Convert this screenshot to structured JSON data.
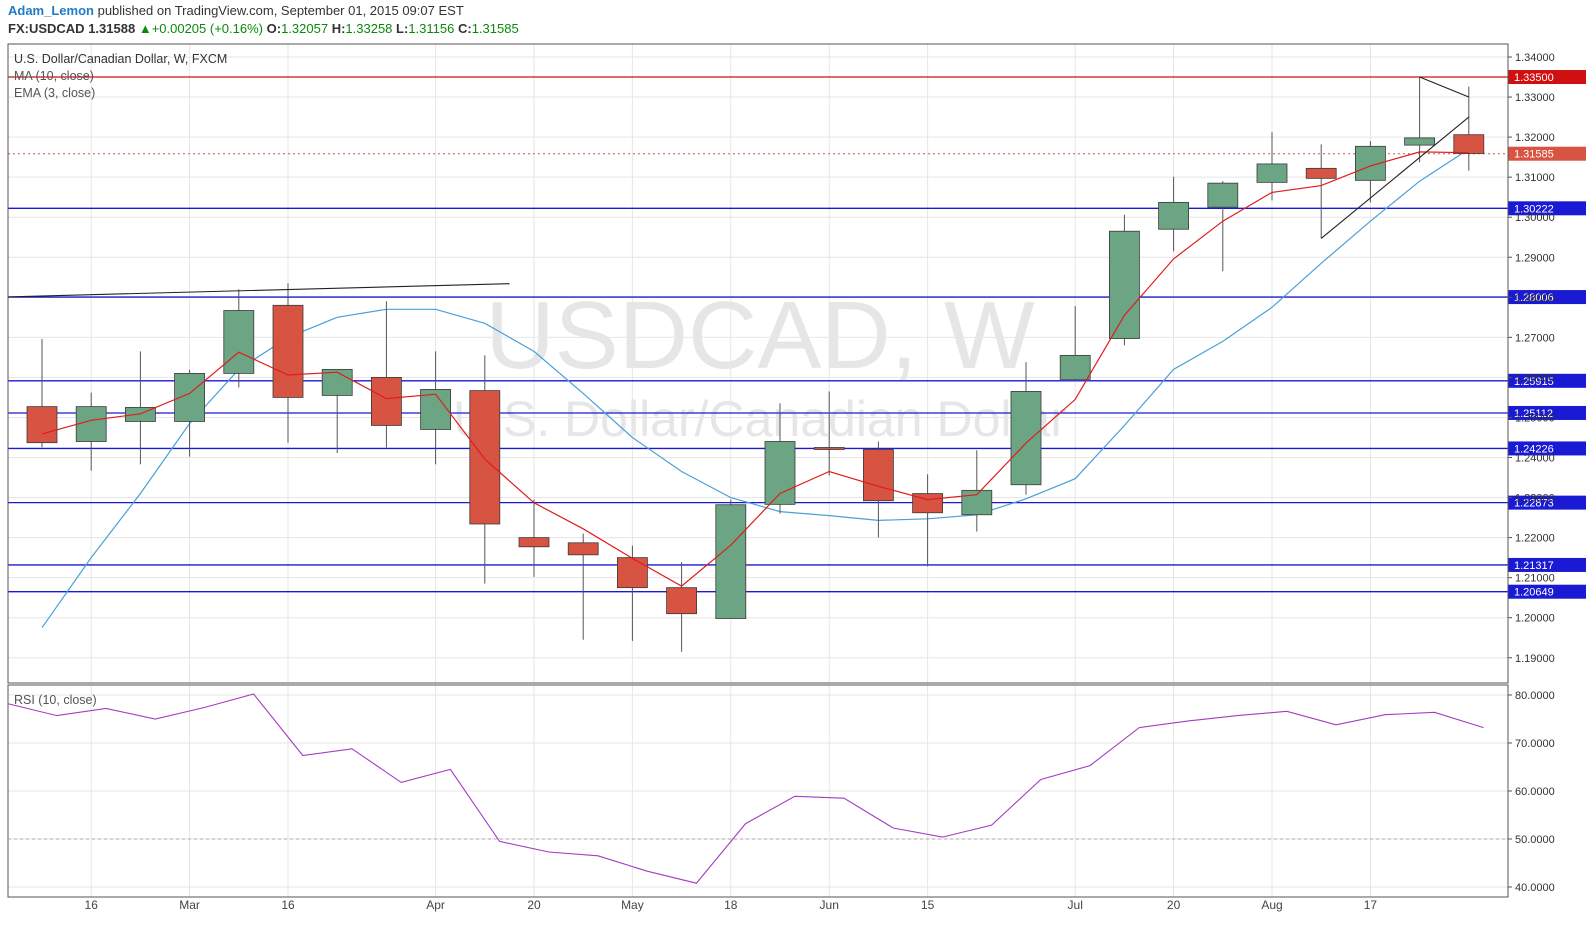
{
  "header": {
    "author": "Adam_Lemon",
    "published_text": "published on TradingView.com, September 01, 2015 09:07 EST",
    "symbol": "FX:USDCAD",
    "last": "1.31588",
    "change_arrow": "▲",
    "change": "+0.00205 (+0.16%)",
    "o_label": "O:",
    "o_value": "1.32057",
    "h_label": "H:",
    "h_value": "1.33258",
    "l_label": "L:",
    "l_value": "1.31156",
    "c_label": "C:",
    "c_value": "1.31585"
  },
  "legend": {
    "title": "U.S. Dollar/Canadian Dollar, W, FXCM",
    "ma": "MA (10, close)",
    "ema": "EMA (3, close)",
    "rsi": "RSI (10, close)"
  },
  "watermark": {
    "symbol": "USDCAD, W",
    "name": "U.S. Dollar/Canadian Dollar"
  },
  "colors": {
    "up": "#6ba583",
    "down": "#d75442",
    "outline": "#3a3a3a",
    "level": "#1a1ad4",
    "resistance": "#d01010",
    "ema": "#e01c1c",
    "ma": "#4aa0d8",
    "rsi": "#a43cc0",
    "trend": "#222222",
    "grid": "#e6e6e6"
  },
  "chart_data": [
    {
      "type": "candlestick",
      "title": "U.S. Dollar/Canadian Dollar, W, FXCM",
      "ylim": [
        1.1825,
        1.3425
      ],
      "y_ticks": [
        "1.34000",
        "1.33000",
        "1.32000",
        "1.31000",
        "1.30000",
        "1.29000",
        "1.28000",
        "1.27000",
        "1.26000",
        "1.25000",
        "1.24000",
        "1.23000",
        "1.22000",
        "1.21000",
        "1.20000",
        "1.19000"
      ],
      "x_tick_labels": [
        "16",
        "Mar",
        "16",
        "Apr",
        "20",
        "May",
        "18",
        "Jun",
        "15",
        "Jul",
        "20",
        "Aug",
        "17"
      ],
      "x_tick_week_index": [
        1,
        3,
        5,
        8,
        10,
        12,
        14,
        16,
        18,
        21,
        23,
        25,
        27
      ],
      "candles": [
        {
          "o": 1.2527,
          "h": 1.2696,
          "l": 1.2426,
          "c": 1.2437
        },
        {
          "o": 1.244,
          "h": 1.2562,
          "l": 1.2367,
          "c": 1.2527
        },
        {
          "o": 1.249,
          "h": 1.2665,
          "l": 1.2383,
          "c": 1.2525
        },
        {
          "o": 1.249,
          "h": 1.2619,
          "l": 1.2402,
          "c": 1.261
        },
        {
          "o": 1.261,
          "h": 1.282,
          "l": 1.2575,
          "c": 1.2767
        },
        {
          "o": 1.278,
          "h": 1.2835,
          "l": 1.2437,
          "c": 1.255
        },
        {
          "o": 1.2555,
          "h": 1.2616,
          "l": 1.2411,
          "c": 1.262
        },
        {
          "o": 1.26,
          "h": 1.279,
          "l": 1.2425,
          "c": 1.248
        },
        {
          "o": 1.247,
          "h": 1.2665,
          "l": 1.2383,
          "c": 1.257
        },
        {
          "o": 1.2567,
          "h": 1.2655,
          "l": 1.2085,
          "c": 1.2234
        },
        {
          "o": 1.22,
          "h": 1.2295,
          "l": 1.2102,
          "c": 1.2177
        },
        {
          "o": 1.2187,
          "h": 1.221,
          "l": 1.1945,
          "c": 1.2157
        },
        {
          "o": 1.215,
          "h": 1.218,
          "l": 1.1942,
          "c": 1.2075
        },
        {
          "o": 1.2075,
          "h": 1.2139,
          "l": 1.1915,
          "c": 1.201
        },
        {
          "o": 1.1998,
          "h": 1.2295,
          "l": 1.1998,
          "c": 1.2282
        },
        {
          "o": 1.2283,
          "h": 1.2535,
          "l": 1.226,
          "c": 1.244
        },
        {
          "o": 1.2425,
          "h": 1.2565,
          "l": 1.2355,
          "c": 1.242
        },
        {
          "o": 1.242,
          "h": 1.244,
          "l": 1.22,
          "c": 1.2292
        },
        {
          "o": 1.231,
          "h": 1.2358,
          "l": 1.2128,
          "c": 1.2262
        },
        {
          "o": 1.2257,
          "h": 1.2418,
          "l": 1.2215,
          "c": 1.2318
        },
        {
          "o": 1.2332,
          "h": 1.2638,
          "l": 1.2307,
          "c": 1.2565
        },
        {
          "o": 1.2595,
          "h": 1.2778,
          "l": 1.259,
          "c": 1.2655
        },
        {
          "o": 1.2697,
          "h": 1.3006,
          "l": 1.268,
          "c": 1.2965
        },
        {
          "o": 1.297,
          "h": 1.3101,
          "l": 1.2915,
          "c": 1.3037
        },
        {
          "o": 1.3025,
          "h": 1.309,
          "l": 1.2865,
          "c": 1.3085
        },
        {
          "o": 1.3087,
          "h": 1.3212,
          "l": 1.3042,
          "c": 1.3133
        },
        {
          "o": 1.3122,
          "h": 1.3182,
          "l": 1.2947,
          "c": 1.3097
        },
        {
          "o": 1.3092,
          "h": 1.319,
          "l": 1.3037,
          "c": 1.3177
        },
        {
          "o": 1.318,
          "h": 1.335,
          "l": 1.3137,
          "c": 1.3198
        },
        {
          "o": 1.3206,
          "h": 1.3326,
          "l": 1.3116,
          "c": 1.3159
        }
      ],
      "ema3": [
        1.2459,
        1.2493,
        1.2509,
        1.256,
        1.2663,
        1.2606,
        1.2613,
        1.2547,
        1.2558,
        1.2396,
        1.2287,
        1.2222,
        1.2148,
        1.2079,
        1.2181,
        1.231,
        1.2365,
        1.2328,
        1.2295,
        1.2307,
        1.2436,
        1.2545,
        1.2755,
        1.2896,
        1.299,
        1.3062,
        1.3079,
        1.3128,
        1.3163,
        1.3161
      ],
      "ma10_points": [
        [
          0,
          1.1975
        ],
        [
          1,
          1.215
        ],
        [
          2,
          1.231
        ],
        [
          3,
          1.2485
        ],
        [
          4,
          1.262
        ],
        [
          5,
          1.27
        ],
        [
          6,
          1.275
        ],
        [
          7,
          1.277
        ],
        [
          8,
          1.277
        ],
        [
          9,
          1.2735
        ],
        [
          10,
          1.2665
        ],
        [
          11,
          1.256
        ],
        [
          12,
          1.245
        ],
        [
          13,
          1.2365
        ],
        [
          14,
          1.23
        ],
        [
          15,
          1.2265
        ],
        [
          16,
          1.2255
        ],
        [
          17,
          1.2243
        ],
        [
          18,
          1.2247
        ],
        [
          19,
          1.2257
        ],
        [
          20,
          1.2297
        ],
        [
          21,
          1.2347
        ],
        [
          22,
          1.248
        ],
        [
          23,
          1.262
        ],
        [
          24,
          1.269
        ],
        [
          25,
          1.2775
        ],
        [
          26,
          1.2885
        ],
        [
          27,
          1.299
        ],
        [
          28,
          1.309
        ],
        [
          29,
          1.317
        ]
      ],
      "levels": [
        {
          "value": 1.335,
          "label": "1.33500",
          "color": "#d01010"
        },
        {
          "value": 1.30222,
          "label": "1.30222",
          "color": "#1a1ad4"
        },
        {
          "value": 1.28006,
          "label": "1.28006",
          "color": "#1a1ad4"
        },
        {
          "value": 1.25915,
          "label": "1.25915",
          "color": "#1a1ad4"
        },
        {
          "value": 1.25112,
          "label": "1.25112",
          "color": "#1a1ad4"
        },
        {
          "value": 1.24226,
          "label": "1.24226",
          "color": "#1a1ad4"
        },
        {
          "value": 1.22873,
          "label": "1.22873",
          "color": "#1a1ad4"
        },
        {
          "value": 1.21317,
          "label": "1.21317",
          "color": "#1a1ad4"
        },
        {
          "value": 1.20649,
          "label": "1.20649",
          "color": "#1a1ad4"
        }
      ],
      "last_price": {
        "value": 1.31585,
        "label": "1.31585"
      },
      "trend_lines": [
        [
          [
            -0.7,
            1.2801
          ],
          [
            9.5,
            1.2834
          ]
        ],
        [
          [
            26.0,
            1.2947
          ],
          [
            29.0,
            1.325
          ]
        ],
        [
          [
            28.0,
            1.335
          ],
          [
            29.0,
            1.33
          ]
        ]
      ]
    },
    {
      "type": "line",
      "title": "RSI (10, close)",
      "ylim": [
        39,
        81
      ],
      "y_ticks": [
        "80.0000",
        "70.0000",
        "60.0000",
        "50.0000",
        "40.0000"
      ],
      "midline": 50,
      "values": [
        78.2,
        75.7,
        77.2,
        75.0,
        77.4,
        80.2,
        67.4,
        68.8,
        61.8,
        64.5,
        49.5,
        47.3,
        46.5,
        43.3,
        40.8,
        53.2,
        58.9,
        58.5,
        52.3,
        50.4,
        52.9,
        62.4,
        65.3,
        73.2,
        74.6,
        75.7,
        76.6,
        73.8,
        75.9,
        76.4,
        73.2
      ]
    }
  ]
}
